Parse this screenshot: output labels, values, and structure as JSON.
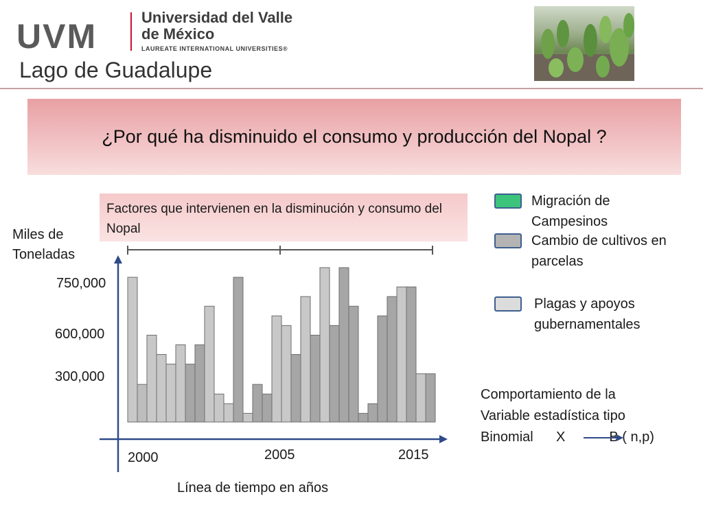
{
  "header": {
    "logo": "UVM",
    "university": "Universidad del Valle de México",
    "network": "LAUREATE INTERNATIONAL UNIVERSITIES®",
    "campus": "Lago de Guadalupe",
    "photo_icon": "nopal-photo"
  },
  "title": "¿Por qué ha disminuido el consumo y producción del Nopal ?",
  "note": {
    "line1": "Comportamiento de  la",
    "line2": "Variable estadística  tipo",
    "line3_left": "Binomial      X",
    "line3_right": "B ( n,p)"
  },
  "colors": {
    "accent_red": "#c8102e",
    "legend_border": "#3d5f8f",
    "axis": "#2e4a8a"
  },
  "chart_data": {
    "type": "bar",
    "title": "Factores  que  intervienen  en la disminución y consumo  del  Nopal",
    "ylabel": "Miles de Toneladas",
    "xlabel": "Línea de tiempo en años",
    "y_ticks": [
      "750,000",
      "600,000",
      "300,000"
    ],
    "x_ticks": [
      "2000",
      "2005",
      "2015"
    ],
    "legend": [
      {
        "label": "Migración  de Campesinos",
        "color": "#3cc47c"
      },
      {
        "label": "Cambio de  cultivos en parcelas",
        "color": "#b4b4b4"
      },
      {
        "label": "Plagas y apoyos gubernamentales",
        "color": "#dcdcdc"
      }
    ],
    "bars": [
      {
        "value": 750000,
        "shade": "light"
      },
      {
        "value": 195000,
        "shade": "mid"
      },
      {
        "value": 450000,
        "shade": "light"
      },
      {
        "value": 350000,
        "shade": "light"
      },
      {
        "value": 300000,
        "shade": "light"
      },
      {
        "value": 400000,
        "shade": "light"
      },
      {
        "value": 300000,
        "shade": "dark"
      },
      {
        "value": 400000,
        "shade": "dark"
      },
      {
        "value": 600000,
        "shade": "light"
      },
      {
        "value": 145000,
        "shade": "light"
      },
      {
        "value": 95000,
        "shade": "light"
      },
      {
        "value": 750000,
        "shade": "dark"
      },
      {
        "value": 45000,
        "shade": "light"
      },
      {
        "value": 195000,
        "shade": "dark"
      },
      {
        "value": 145000,
        "shade": "dark"
      },
      {
        "value": 550000,
        "shade": "light"
      },
      {
        "value": 500000,
        "shade": "light"
      },
      {
        "value": 350000,
        "shade": "dark"
      },
      {
        "value": 650000,
        "shade": "light"
      },
      {
        "value": 450000,
        "shade": "dark"
      },
      {
        "value": 800000,
        "shade": "light"
      },
      {
        "value": 500000,
        "shade": "dark"
      },
      {
        "value": 800000,
        "shade": "dark"
      },
      {
        "value": 600000,
        "shade": "dark"
      },
      {
        "value": 45000,
        "shade": "dark"
      },
      {
        "value": 95000,
        "shade": "dark"
      },
      {
        "value": 550000,
        "shade": "dark"
      },
      {
        "value": 650000,
        "shade": "dark"
      },
      {
        "value": 700000,
        "shade": "light"
      },
      {
        "value": 700000,
        "shade": "dark"
      },
      {
        "value": 250000,
        "shade": "light"
      },
      {
        "value": 250000,
        "shade": "dark"
      }
    ],
    "ylim": [
      0,
      850000
    ],
    "grid": false
  }
}
